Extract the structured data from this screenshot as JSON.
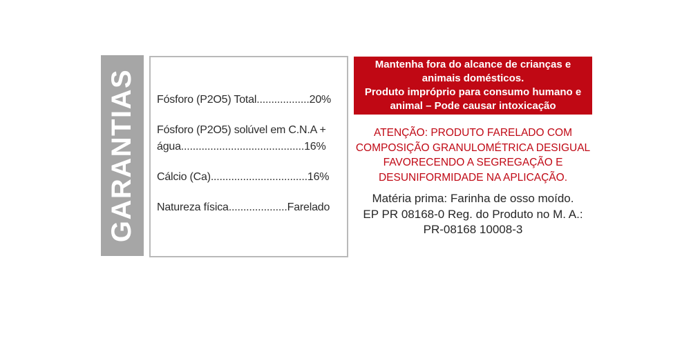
{
  "guarantees_panel": {
    "title": "GARANTIAS",
    "rows": [
      {
        "lines": [
          "Fósforo (P2O5) Total..................20%"
        ]
      },
      {
        "lines": [
          "Fósforo (P2O5) solúvel em C.N.A +",
          "água..........................................16%"
        ]
      },
      {
        "lines": [
          "Cálcio (Ca).................................16%"
        ]
      },
      {
        "lines": [
          "Natureza física....................Farelado"
        ]
      }
    ]
  },
  "warning_banner": {
    "lines": [
      "Mantenha fora do alcance de crianças e",
      "animais domésticos.",
      "Produto impróprio para consumo humano e",
      "animal – Pode causar intoxicação"
    ]
  },
  "attention_notice": {
    "lines": [
      "ATENÇÃO: PRODUTO FARELADO COM",
      "COMPOSIÇÃO GRANULOMÉTRICA DESIGUAL",
      "FAVORECENDO A SEGREGAÇÃO E",
      "DESUNIFORMIDADE NA APLICAÇÃO."
    ]
  },
  "product_info": {
    "lines": [
      "Matéria prima: Farinha de osso moído.",
      "EP PR 08168-0 Reg. do Produto no M. A.:",
      "PR-08168 10008-3"
    ]
  },
  "colors": {
    "bar_gray": "#A6A6A6",
    "banner_red": "#C00814",
    "attention_red": "#C00814",
    "box_border_gray": "#B9B9B9",
    "text_dark": "#2B2B2B"
  }
}
